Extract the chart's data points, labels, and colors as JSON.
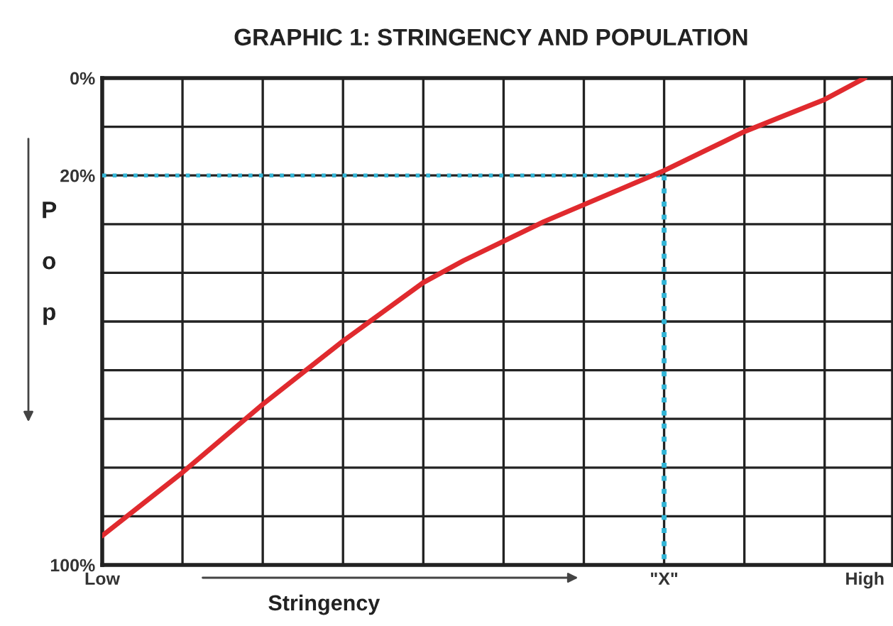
{
  "chart_data": {
    "type": "line",
    "title": "GRAPHIC 1: STRINGENCY AND POPULATION",
    "xlabel": "Stringency",
    "ylabel": "Pop",
    "categories": [
      "Low",
      null,
      null,
      null,
      null,
      null,
      null,
      null,
      null,
      null,
      null,
      null,
      null,
      null,
      "\"X\"",
      null,
      null,
      null,
      null,
      "High"
    ],
    "series": [
      {
        "color": "#e02a2e",
        "values": [
          94,
          87.5,
          81,
          74,
          67,
          60.5,
          54,
          48,
          42,
          37.5,
          33.5,
          29.5,
          26,
          22.5,
          19,
          15,
          11,
          7.7,
          4.4,
          0
        ]
      }
    ],
    "ylim": [
      100,
      0
    ],
    "yticks": [
      {
        "value": 0,
        "label": "0%"
      },
      {
        "value": 10,
        "label": null
      },
      {
        "value": 20,
        "label": "20%"
      },
      {
        "value": 30,
        "label": null
      },
      {
        "value": 40,
        "label": null
      },
      {
        "value": 50,
        "label": null
      },
      {
        "value": 60,
        "label": null
      },
      {
        "value": 70,
        "label": null
      },
      {
        "value": 80,
        "label": null
      },
      {
        "value": 90,
        "label": null
      },
      {
        "value": 100,
        "label": "100%"
      }
    ],
    "ref_lines": [
      {
        "axis": "y",
        "value": 20,
        "color": "#33b5d6",
        "line_style": "dotted"
      },
      {
        "axis": "x",
        "value": "\"X\"",
        "color": "#33b5d6",
        "line_style": "dotted"
      }
    ],
    "grid": true,
    "marker": "none",
    "line_style": "solid"
  }
}
